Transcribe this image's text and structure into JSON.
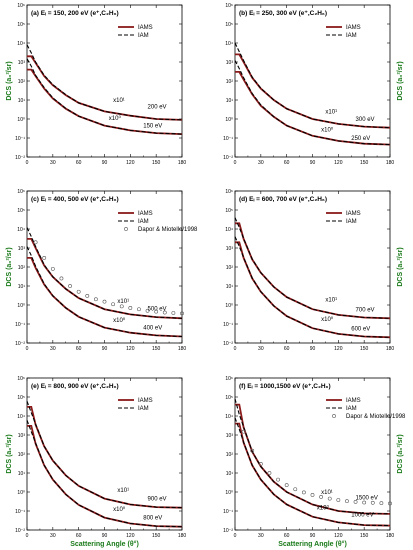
{
  "figure": {
    "ylabel": "DCS (a₀²/sr)",
    "xlabel": "Scattering Angle (θ°)",
    "legend": {
      "iams": "IAMS",
      "iam": "IAM",
      "dapor": "Dapor & Miotello/1998"
    }
  },
  "chart_data": [
    {
      "type": "line",
      "title": "(a) Eᵢ = 150, 200 eV (e⁺,C₂H₆)",
      "ylabel": "DCS (a₀²/sr)",
      "xlabel": "",
      "ylim": [
        0.01,
        1000000
      ],
      "yscale": "log",
      "xlim": [
        0,
        180
      ],
      "x_ticks": [
        "0",
        "30",
        "60",
        "90",
        "120",
        "150",
        "180"
      ],
      "y_ticks": [
        "10⁻²",
        "10⁻¹",
        "10⁰",
        "10¹",
        "10²",
        "10³",
        "10⁴",
        "10⁵",
        "10⁶"
      ],
      "annotations": [
        {
          "text": "x10¹"
        },
        {
          "text": "200 eV"
        },
        {
          "text": "x10⁰"
        },
        {
          "text": "150 eV"
        }
      ],
      "series": [
        {
          "name": "IAMS",
          "x": [
            0,
            5,
            10,
            20,
            30,
            45,
            60,
            90,
            120,
            150,
            180
          ],
          "values": [
            2000,
            2000,
            900,
            180,
            60,
            18,
            7,
            2.5,
            1.5,
            1.0,
            0.9
          ]
        },
        {
          "name": "IAM",
          "x": [
            0,
            5,
            10,
            20,
            30,
            45,
            60,
            90,
            120,
            150,
            180
          ],
          "values": [
            8000,
            3000,
            1000,
            200,
            65,
            19,
            7,
            2.5,
            1.5,
            1.0,
            0.9
          ]
        },
        {
          "name": "IAMS",
          "x": [
            0,
            5,
            10,
            20,
            30,
            45,
            60,
            90,
            120,
            150,
            180
          ],
          "values": [
            400,
            400,
            180,
            40,
            12,
            3.5,
            1.4,
            0.45,
            0.25,
            0.18,
            0.16
          ]
        },
        {
          "name": "IAM",
          "x": [
            0,
            5,
            10,
            20,
            30,
            45,
            60,
            90,
            120,
            150,
            180
          ],
          "values": [
            1500,
            600,
            200,
            45,
            13,
            3.6,
            1.4,
            0.45,
            0.25,
            0.18,
            0.16
          ]
        }
      ]
    },
    {
      "type": "line",
      "title": "(b) Eᵢ = 250, 300 eV (e⁺,C₂H₆)",
      "ylabel": "DCS (a₀²/sr)",
      "xlabel": "",
      "ylim": [
        0.01,
        1000000
      ],
      "yscale": "log",
      "xlim": [
        0,
        180
      ],
      "x_ticks": [
        "0",
        "30",
        "60",
        "90",
        "120",
        "150",
        "180"
      ],
      "y_ticks": [
        "10⁻²",
        "10⁻¹",
        "10⁰",
        "10¹",
        "10²",
        "10³",
        "10⁴",
        "10⁵",
        "10⁶"
      ],
      "annotations": [
        {
          "text": "x10¹"
        },
        {
          "text": "300 eV"
        },
        {
          "text": "x10⁰"
        },
        {
          "text": "250 eV"
        }
      ],
      "series": [
        {
          "name": "IAMS",
          "x": [
            0,
            5,
            10,
            20,
            30,
            45,
            60,
            90,
            120,
            150,
            180
          ],
          "values": [
            2500,
            2500,
            1000,
            150,
            40,
            10,
            3.5,
            1.0,
            0.55,
            0.4,
            0.35
          ]
        },
        {
          "name": "IAM",
          "x": [
            0,
            5,
            10,
            20,
            30,
            45,
            60,
            90,
            120,
            150,
            180
          ],
          "values": [
            10000,
            3500,
            1200,
            160,
            42,
            10,
            3.5,
            1.0,
            0.55,
            0.4,
            0.35
          ]
        },
        {
          "name": "IAMS",
          "x": [
            0,
            5,
            10,
            20,
            30,
            45,
            60,
            90,
            120,
            150,
            180
          ],
          "values": [
            300,
            300,
            120,
            20,
            5,
            1.3,
            0.45,
            0.13,
            0.07,
            0.05,
            0.045
          ]
        },
        {
          "name": "IAM",
          "x": [
            0,
            5,
            10,
            20,
            30,
            45,
            60,
            90,
            120,
            150,
            180
          ],
          "values": [
            1200,
            450,
            150,
            22,
            5.5,
            1.3,
            0.45,
            0.13,
            0.07,
            0.05,
            0.045
          ]
        }
      ]
    },
    {
      "type": "line",
      "title": "(c) Eᵢ = 400, 500 eV (e⁺,C₂H₆)",
      "ylabel": "DCS (a₀²/sr)",
      "xlabel": "",
      "ylim": [
        0.01,
        1000000
      ],
      "yscale": "log",
      "xlim": [
        0,
        180
      ],
      "x_ticks": [
        "0",
        "30",
        "60",
        "90",
        "120",
        "150",
        "180"
      ],
      "y_ticks": [
        "10⁻²",
        "10⁻¹",
        "10⁰",
        "10¹",
        "10²",
        "10³",
        "10⁴",
        "10⁵",
        "10⁶"
      ],
      "annotations": [
        {
          "text": "x10¹"
        },
        {
          "text": "500 eV"
        },
        {
          "text": "x10⁰"
        },
        {
          "text": "400 eV"
        }
      ],
      "series": [
        {
          "name": "IAMS",
          "x": [
            0,
            5,
            10,
            20,
            30,
            45,
            60,
            90,
            120,
            150,
            180
          ],
          "values": [
            3000,
            3000,
            1000,
            120,
            30,
            7,
            2.3,
            0.6,
            0.32,
            0.23,
            0.2
          ]
        },
        {
          "name": "IAM",
          "x": [
            0,
            5,
            10,
            20,
            30,
            45,
            60,
            90,
            120,
            150,
            180
          ],
          "values": [
            12000,
            4000,
            1200,
            130,
            31,
            7,
            2.3,
            0.6,
            0.32,
            0.23,
            0.2
          ]
        },
        {
          "name": "IAMS",
          "x": [
            0,
            5,
            10,
            20,
            30,
            45,
            60,
            90,
            120,
            150,
            180
          ],
          "values": [
            300,
            300,
            90,
            12,
            3,
            0.7,
            0.24,
            0.065,
            0.035,
            0.025,
            0.022
          ]
        },
        {
          "name": "IAM",
          "x": [
            0,
            5,
            10,
            20,
            30,
            45,
            60,
            90,
            120,
            150,
            180
          ],
          "values": [
            1200,
            400,
            110,
            13,
            3.1,
            0.7,
            0.24,
            0.065,
            0.035,
            0.025,
            0.022
          ]
        },
        {
          "name": "Dapor & Miotello/1998",
          "x": [
            10,
            20,
            30,
            40,
            50,
            60,
            70,
            80,
            90,
            100,
            110,
            120,
            130,
            140,
            150,
            160,
            170,
            180
          ],
          "values": [
            2000,
            300,
            80,
            25,
            10,
            5,
            3,
            2,
            1.5,
            1.1,
            0.85,
            0.7,
            0.6,
            0.5,
            0.45,
            0.4,
            0.38,
            0.36
          ]
        }
      ]
    },
    {
      "type": "line",
      "title": "(d) Eᵢ = 600, 700 eV (e⁺,C₂H₆)",
      "ylabel": "DCS (a₀²/sr)",
      "xlabel": "",
      "ylim": [
        0.01,
        1000000
      ],
      "yscale": "log",
      "xlim": [
        0,
        180
      ],
      "x_ticks": [
        "0",
        "30",
        "60",
        "90",
        "120",
        "150",
        "180"
      ],
      "y_ticks": [
        "10⁻²",
        "10⁻¹",
        "10⁰",
        "10¹",
        "10²",
        "10³",
        "10⁴",
        "10⁵",
        "10⁶"
      ],
      "annotations": [
        {
          "text": "x10¹"
        },
        {
          "text": "700 eV"
        },
        {
          "text": "x10⁰"
        },
        {
          "text": "600 eV"
        }
      ],
      "series": [
        {
          "name": "IAMS",
          "x": [
            0,
            5,
            10,
            20,
            30,
            45,
            60,
            90,
            120,
            150,
            180
          ],
          "values": [
            20000,
            20000,
            3000,
            250,
            50,
            9,
            2.6,
            0.6,
            0.3,
            0.22,
            0.2
          ]
        },
        {
          "name": "IAM",
          "x": [
            0,
            5,
            10,
            20,
            30,
            45,
            60,
            90,
            120,
            150,
            180
          ],
          "values": [
            40000,
            12000,
            3200,
            260,
            51,
            9,
            2.6,
            0.6,
            0.3,
            0.22,
            0.2
          ]
        },
        {
          "name": "IAMS",
          "x": [
            0,
            5,
            10,
            20,
            30,
            45,
            60,
            90,
            120,
            150,
            180
          ],
          "values": [
            2000,
            2000,
            300,
            25,
            5,
            0.9,
            0.26,
            0.06,
            0.03,
            0.022,
            0.02
          ]
        },
        {
          "name": "IAM",
          "x": [
            0,
            5,
            10,
            20,
            30,
            45,
            60,
            90,
            120,
            150,
            180
          ],
          "values": [
            4000,
            1200,
            320,
            26,
            5.1,
            0.9,
            0.26,
            0.06,
            0.03,
            0.022,
            0.02
          ]
        }
      ]
    },
    {
      "type": "line",
      "title": "(e) Eᵢ = 800, 900 eV (e⁺,C₂H₆)",
      "ylabel": "DCS (a₀²/sr)",
      "xlabel": "Scattering Angle (θ°)",
      "ylim": [
        0.01,
        1000000
      ],
      "yscale": "log",
      "xlim": [
        0,
        180
      ],
      "x_ticks": [
        "0",
        "30",
        "60",
        "90",
        "120",
        "150",
        "180"
      ],
      "y_ticks": [
        "10⁻²",
        "10⁻¹",
        "10⁰",
        "10¹",
        "10²",
        "10³",
        "10⁴",
        "10⁵",
        "10⁶"
      ],
      "annotations": [
        {
          "text": "x10¹"
        },
        {
          "text": "900 eV"
        },
        {
          "text": "x10⁰"
        },
        {
          "text": "800 eV"
        }
      ],
      "series": [
        {
          "name": "IAMS",
          "x": [
            0,
            5,
            10,
            20,
            30,
            45,
            60,
            90,
            120,
            150,
            180
          ],
          "values": [
            30000,
            30000,
            3500,
            250,
            45,
            7.5,
            2.1,
            0.45,
            0.22,
            0.16,
            0.15
          ]
        },
        {
          "name": "IAM",
          "x": [
            0,
            5,
            10,
            20,
            30,
            45,
            60,
            90,
            120,
            150,
            180
          ],
          "values": [
            60000,
            15000,
            3800,
            260,
            46,
            7.5,
            2.1,
            0.45,
            0.22,
            0.16,
            0.15
          ]
        },
        {
          "name": "IAMS",
          "x": [
            0,
            5,
            10,
            20,
            30,
            45,
            60,
            90,
            120,
            150,
            180
          ],
          "values": [
            3000,
            3000,
            350,
            25,
            4.5,
            0.75,
            0.21,
            0.045,
            0.022,
            0.016,
            0.015
          ]
        },
        {
          "name": "IAM",
          "x": [
            0,
            5,
            10,
            20,
            30,
            45,
            60,
            90,
            120,
            150,
            180
          ],
          "values": [
            6000,
            1500,
            380,
            26,
            4.6,
            0.75,
            0.21,
            0.045,
            0.022,
            0.016,
            0.015
          ]
        }
      ]
    },
    {
      "type": "line",
      "title": "(f) Eᵢ = 1000,1500 eV (e⁺,C₂H₆)",
      "ylabel": "DCS (a₀²/sr)",
      "xlabel": "Scattering Angle (θ°)",
      "ylim": [
        0.01,
        1000000
      ],
      "yscale": "log",
      "xlim": [
        0,
        180
      ],
      "x_ticks": [
        "0",
        "30",
        "60",
        "90",
        "120",
        "150",
        "180"
      ],
      "y_ticks": [
        "10⁻²",
        "10⁻¹",
        "10⁰",
        "10¹",
        "10²",
        "10³",
        "10⁴",
        "10⁵",
        "10⁶"
      ],
      "annotations": [
        {
          "text": "x10¹"
        },
        {
          "text": "1500 eV"
        },
        {
          "text": "x10⁰"
        },
        {
          "text": "1000 eV"
        }
      ],
      "series": [
        {
          "name": "IAMS",
          "x": [
            0,
            5,
            10,
            20,
            30,
            45,
            60,
            90,
            120,
            150,
            180
          ],
          "values": [
            40000,
            40000,
            2500,
            130,
            22,
            3.5,
            1.0,
            0.22,
            0.1,
            0.075,
            0.07
          ]
        },
        {
          "name": "IAM",
          "x": [
            0,
            5,
            10,
            20,
            30,
            45,
            60,
            90,
            120,
            150,
            180
          ],
          "values": [
            80000,
            12000,
            2700,
            135,
            22,
            3.5,
            1.0,
            0.22,
            0.1,
            0.075,
            0.07
          ]
        },
        {
          "name": "IAMS",
          "x": [
            0,
            5,
            10,
            20,
            30,
            45,
            60,
            90,
            120,
            150,
            180
          ],
          "values": [
            4000,
            4000,
            400,
            25,
            4.5,
            0.75,
            0.22,
            0.05,
            0.025,
            0.018,
            0.017
          ]
        },
        {
          "name": "IAM",
          "x": [
            0,
            5,
            10,
            20,
            30,
            45,
            60,
            90,
            120,
            150,
            180
          ],
          "values": [
            8000,
            2000,
            420,
            26,
            4.6,
            0.75,
            0.22,
            0.05,
            0.025,
            0.018,
            0.017
          ]
        },
        {
          "name": "Dapor & Miotello/1998",
          "x": [
            10,
            20,
            30,
            40,
            50,
            60,
            70,
            80,
            90,
            100,
            110,
            120,
            130,
            140,
            150,
            160,
            170,
            180
          ],
          "values": [
            1500,
            150,
            30,
            10,
            4.5,
            2.3,
            1.4,
            0.95,
            0.7,
            0.55,
            0.45,
            0.38,
            0.33,
            0.3,
            0.28,
            0.27,
            0.26,
            0.25
          ]
        }
      ]
    }
  ]
}
